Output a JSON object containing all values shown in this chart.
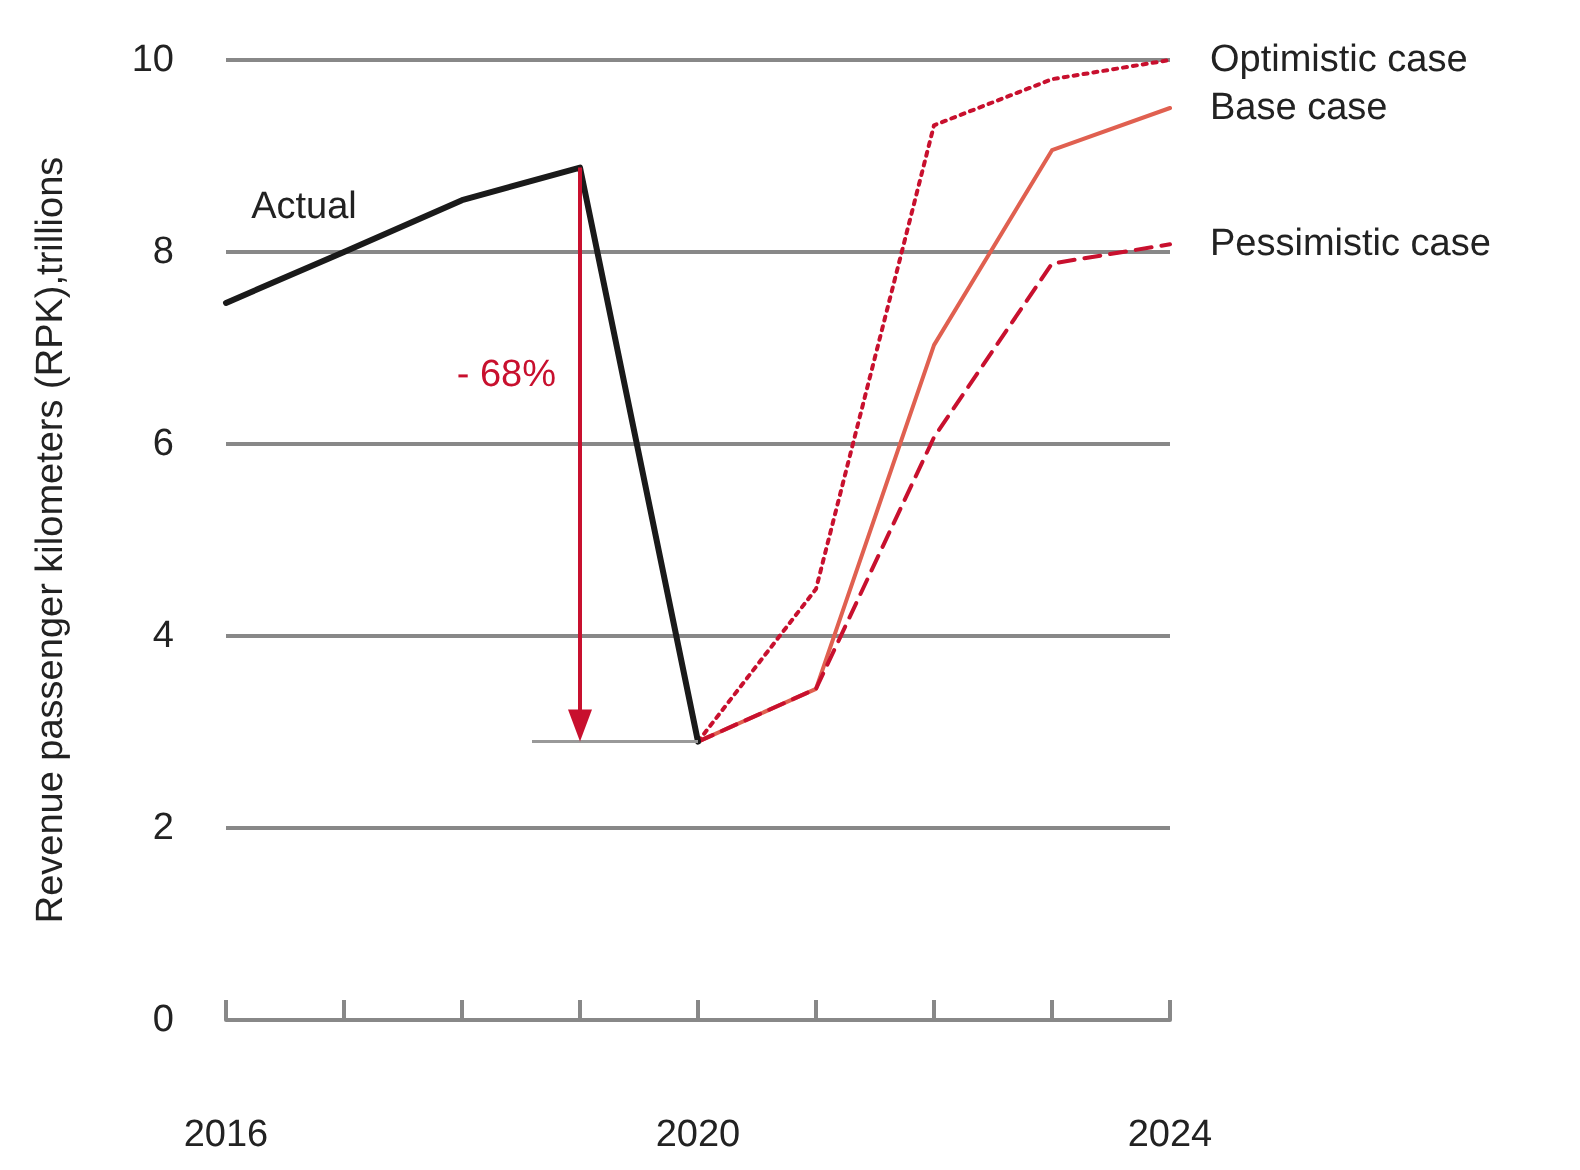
{
  "chart_data": {
    "type": "line",
    "ylabel": "Revenue passenger kilometers (RPK),trillions",
    "xlim": [
      2016,
      2024
    ],
    "xticks": [
      2016,
      {
        "value": 2017,
        "label": null
      },
      {
        "value": 2018,
        "label": null
      },
      {
        "value": 2019,
        "label": null
      },
      2020,
      {
        "value": 2021,
        "label": null
      },
      {
        "value": 2022,
        "label": null
      },
      {
        "value": 2023,
        "label": null
      },
      2024
    ],
    "ylim": [
      0,
      10
    ],
    "yticks": [
      0,
      2,
      4,
      6,
      8,
      10
    ],
    "grid": "y",
    "legend": false,
    "marker": "none",
    "series": [
      {
        "name": "Actual",
        "color": "#1a1a1a",
        "line_style": "solid",
        "x": [
          2016,
          2017,
          2018,
          2019,
          2020
        ],
        "values": [
          7.47,
          8.0,
          8.54,
          8.88,
          2.9
        ]
      },
      {
        "name": "Optimistic case",
        "color": "#c8102e",
        "line_style": "dotted",
        "x": [
          2020,
          2021,
          2022,
          2023,
          2024
        ],
        "values": [
          2.9,
          4.49,
          9.32,
          9.8,
          10.0
        ]
      },
      {
        "name": "Base case",
        "color": "#e06050",
        "line_style": "solid",
        "x": [
          2020,
          2021,
          2022,
          2023,
          2024
        ],
        "values": [
          2.9,
          3.45,
          7.03,
          9.06,
          9.5
        ]
      },
      {
        "name": "Pessimistic case",
        "color": "#c8102e",
        "line_style": "dashed",
        "x": [
          2020,
          2021,
          2022,
          2023,
          2024
        ],
        "values": [
          2.9,
          3.45,
          6.07,
          7.88,
          8.08
        ]
      }
    ],
    "annotations": [
      "- 68%"
    ]
  }
}
